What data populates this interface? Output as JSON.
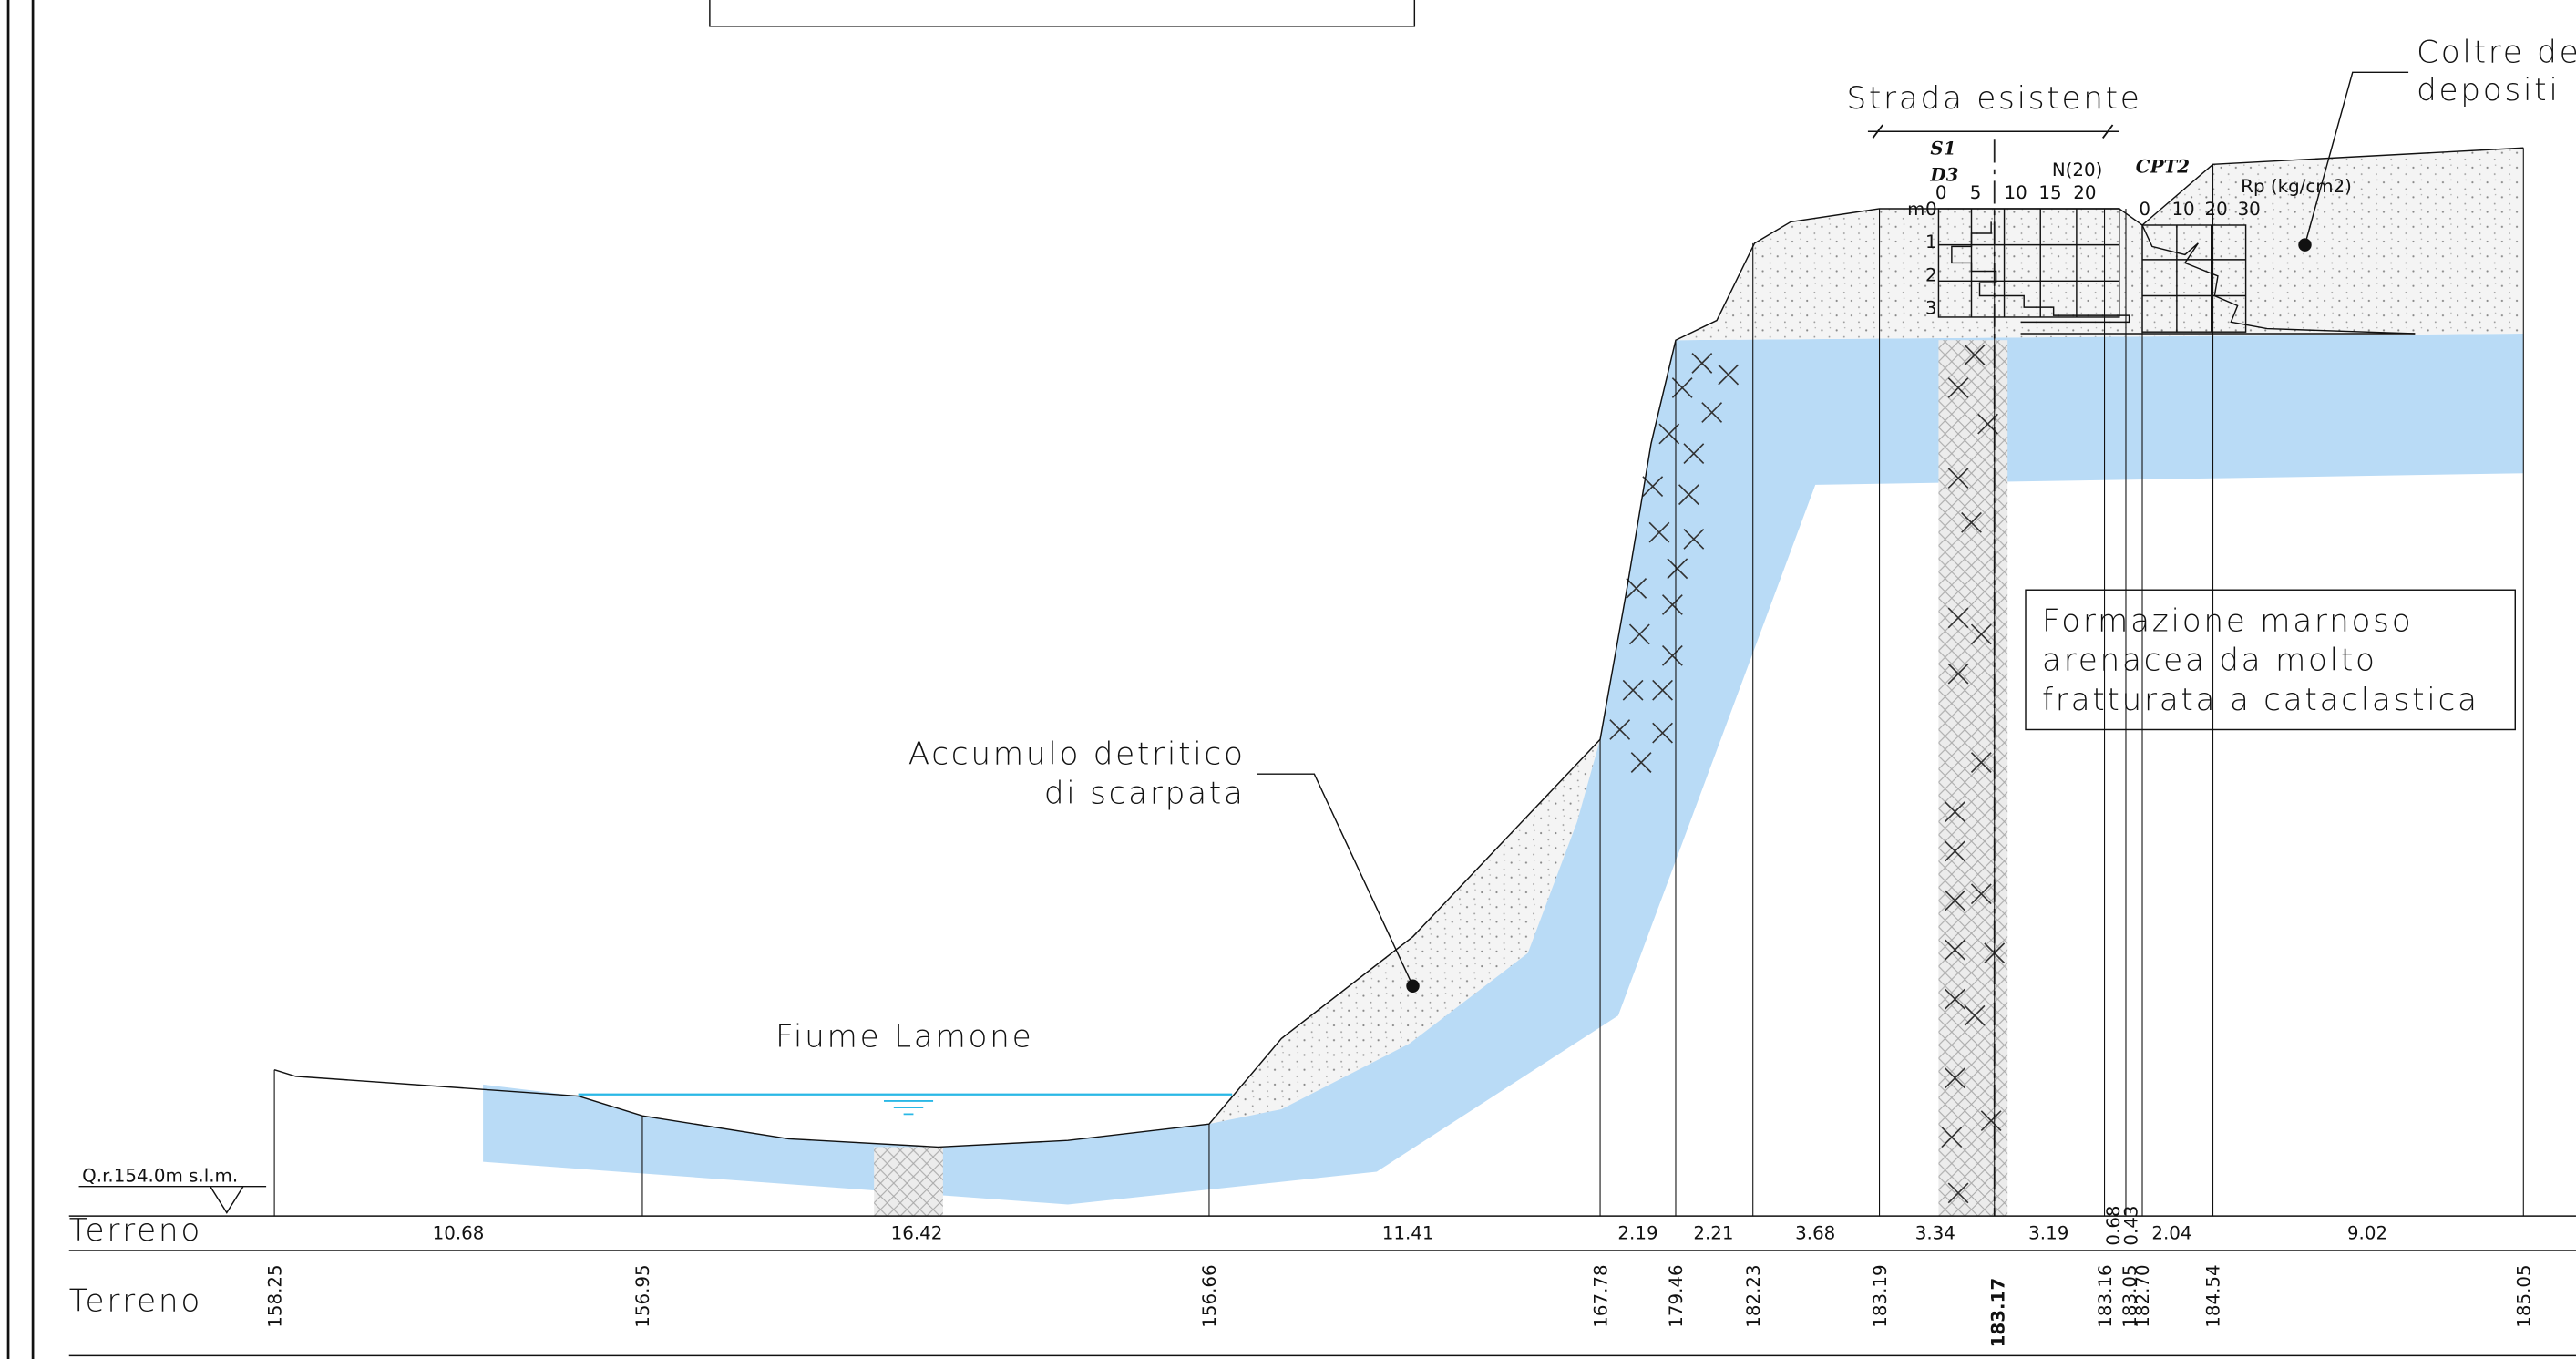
{
  "labels": {
    "road": "Strada esistente",
    "cover": [
      "Coltre de",
      "depositi"
    ],
    "formation": [
      "Formazione marnoso",
      "arenacea da molto",
      "fratturata a cataclastica"
    ],
    "scree": [
      "Accumulo detritico",
      "di scarpata"
    ],
    "river": "Fiume Lamone",
    "datum": "Q.r.154.0m  s.l.m."
  },
  "soundings": {
    "s1": "S1",
    "d3": "D3",
    "cpt": "CPT2",
    "n_label": "N(20)",
    "n_ticks": [
      "0",
      "5",
      "10",
      "15",
      "20"
    ],
    "rp_label": "Rp (kg/cm2)",
    "rp_ticks": [
      "0",
      "10",
      "20",
      "30"
    ],
    "depth_unit": "m",
    "depths": [
      "0",
      "1",
      "2",
      "3"
    ]
  },
  "table": {
    "row_labels": [
      "Terreno",
      "Terreno"
    ],
    "distances": [
      "10.68",
      "16.42",
      "11.41",
      "2.19",
      "2.21",
      "3.68",
      "3.34",
      "3.19",
      "0.68",
      "0.43",
      "2.04",
      "9.02"
    ],
    "elevations": [
      "158.25",
      "156.95",
      "156.66",
      "167.78",
      "179.46",
      "182.23",
      "183.19",
      "183.17",
      "183.16",
      "183.05",
      "182.70",
      "184.54",
      "185.05"
    ]
  }
}
